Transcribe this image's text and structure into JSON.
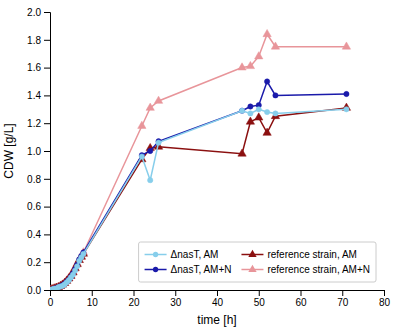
{
  "chart_data": {
    "type": "line",
    "x_label": "time [h]",
    "y_label": "CDW [g/L]",
    "x": [
      0,
      0.5,
      1,
      1.5,
      2,
      2.5,
      3,
      3.5,
      4,
      4.5,
      5,
      5.5,
      6,
      6.5,
      7,
      7.5,
      8,
      22,
      24,
      26,
      46,
      48,
      50,
      52,
      54,
      71
    ],
    "series": [
      {
        "name": "ΔnasT, AM",
        "color": "#87CEEB",
        "marker": "circle",
        "values": [
          0.0,
          0.005,
          0.01,
          0.01,
          0.02,
          0.025,
          0.03,
          0.04,
          0.055,
          0.07,
          0.09,
          0.11,
          0.14,
          0.17,
          0.21,
          0.235,
          0.26,
          0.96,
          0.79,
          1.06,
          1.29,
          1.27,
          1.3,
          1.28,
          1.27,
          1.3
        ]
      },
      {
        "name": "ΔnasT, AM+N",
        "color": "#1a1aaa",
        "marker": "circle",
        "values": [
          0.0,
          0.005,
          0.01,
          0.015,
          0.02,
          0.028,
          0.035,
          0.045,
          0.06,
          0.075,
          0.095,
          0.12,
          0.15,
          0.18,
          0.22,
          0.245,
          0.27,
          0.97,
          1.0,
          1.07,
          1.29,
          1.32,
          1.33,
          1.5,
          1.4,
          1.41
        ]
      },
      {
        "name": "reference strain, AM",
        "color": "#8B1010",
        "marker": "triangle",
        "values": [
          0.0,
          0.005,
          0.01,
          0.015,
          0.02,
          0.028,
          0.038,
          0.05,
          0.065,
          0.082,
          0.1,
          0.125,
          0.155,
          0.185,
          0.215,
          0.238,
          0.26,
          0.94,
          1.02,
          1.03,
          0.98,
          1.21,
          1.24,
          1.13,
          1.25,
          1.31
        ]
      },
      {
        "name": "reference strain, AM+N",
        "color": "#E8959A",
        "marker": "triangle",
        "values": [
          0.0,
          0.005,
          0.01,
          0.015,
          0.02,
          0.028,
          0.038,
          0.05,
          0.068,
          0.085,
          0.105,
          0.13,
          0.16,
          0.19,
          0.215,
          0.242,
          0.27,
          1.18,
          1.31,
          1.36,
          1.6,
          1.61,
          1.68,
          1.84,
          1.75,
          1.75
        ]
      }
    ],
    "xlim": [
      0,
      80
    ],
    "ylim": [
      0,
      2.0
    ],
    "xticks": [
      0,
      10,
      20,
      30,
      40,
      50,
      60,
      70,
      80
    ],
    "yticks": [
      {
        "value": 0.0,
        "label": "0.0"
      },
      0.2,
      0.4,
      0.6,
      0.8,
      {
        "value": 1.0,
        "label": "1.0"
      },
      1.2,
      1.4,
      1.6,
      1.8,
      {
        "value": 2.0,
        "label": "2.0"
      }
    ],
    "grid": false,
    "legend": "lower right"
  }
}
